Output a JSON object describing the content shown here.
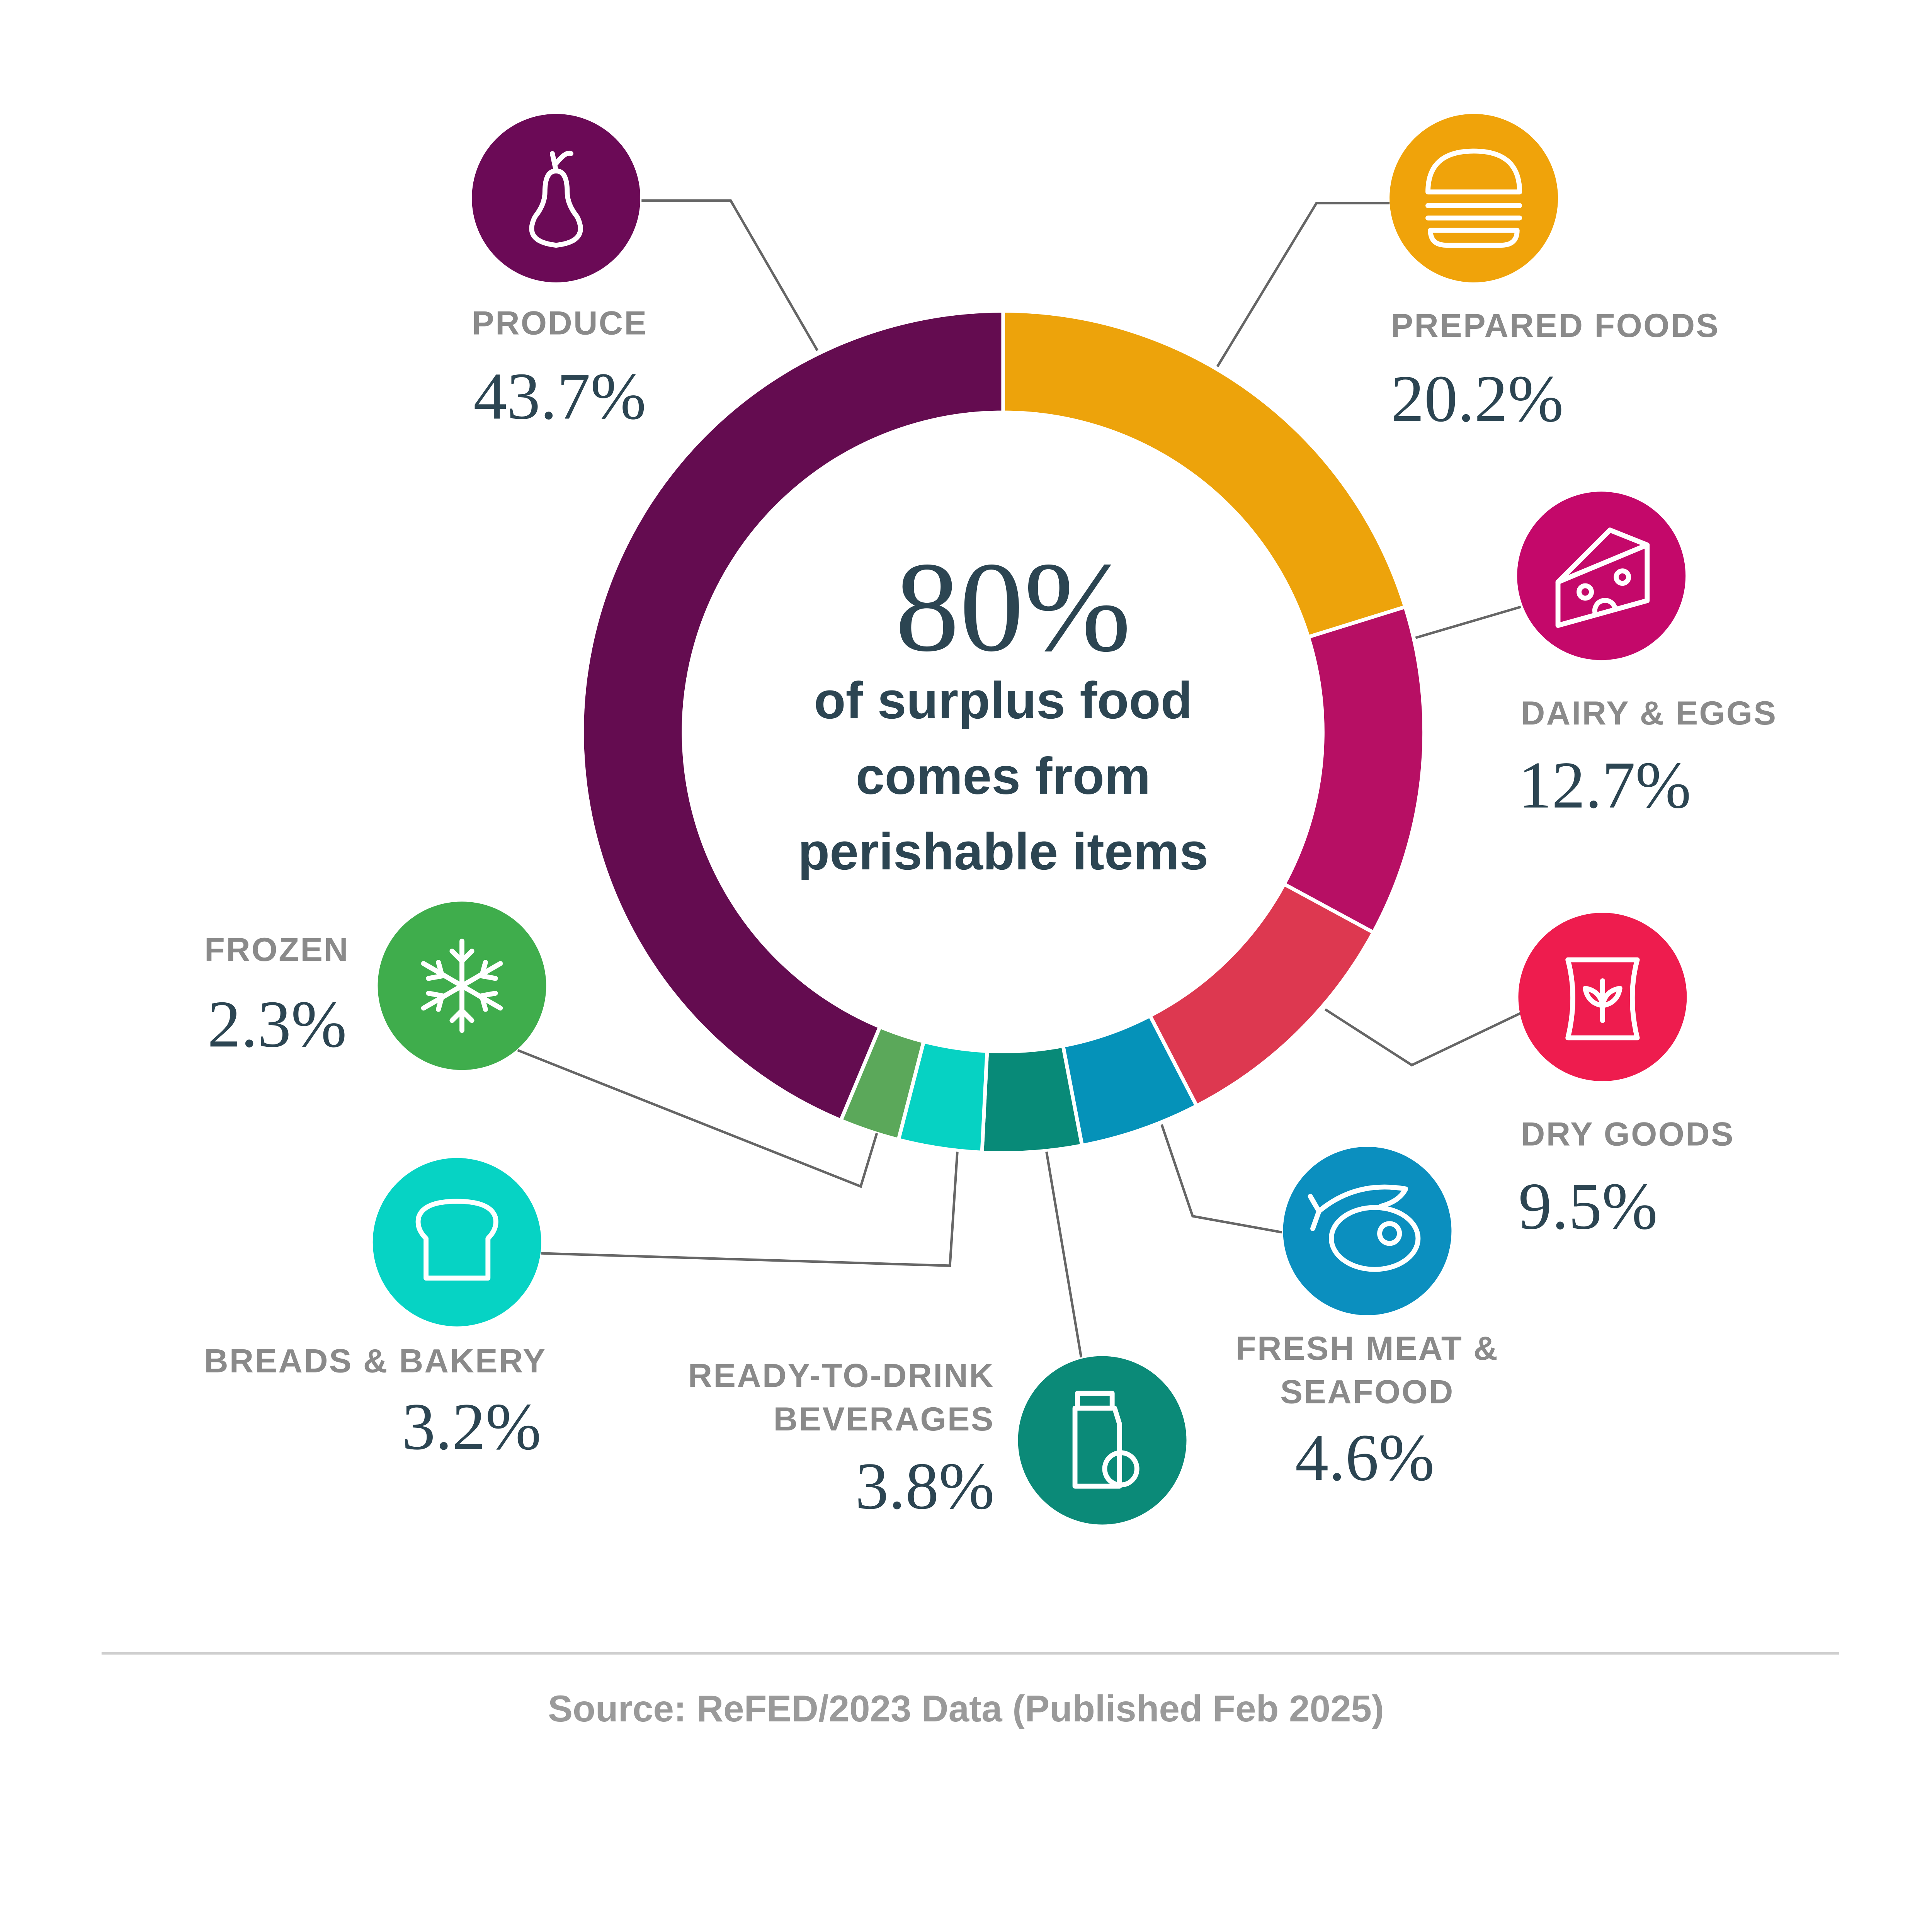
{
  "chart_data": {
    "type": "pie",
    "variant": "donut",
    "center_value": "80%",
    "center_text": [
      "of surplus food",
      "comes from",
      "perishable items"
    ],
    "slices": [
      {
        "label": "PREPARED FOODS",
        "label_lines": [
          "PREPARED FOODS"
        ],
        "value": 20.2,
        "display": "20.2%",
        "color": "#eda30b",
        "icon": "burger-icon"
      },
      {
        "label": "DAIRY & EGGS",
        "label_lines": [
          "DAIRY & EGGS"
        ],
        "value": 12.7,
        "display": "12.7%",
        "color": "#b70f64",
        "icon": "cheese-icon"
      },
      {
        "label": "DRY GOODS",
        "label_lines": [
          "DRY GOODS"
        ],
        "value": 9.5,
        "display": "9.5%",
        "color": "#dd3850",
        "icon": "grain-bag-icon"
      },
      {
        "label": "FRESH MEAT & SEAFOOD",
        "label_lines": [
          "FRESH MEAT &",
          "SEAFOOD"
        ],
        "value": 4.6,
        "display": "4.6%",
        "color": "#0592b9",
        "icon": "fish-steak-icon"
      },
      {
        "label": "READY-TO-DRINK BEVERAGES",
        "label_lines": [
          "READY-TO-DRINK",
          "BEVERAGES"
        ],
        "value": 3.8,
        "display": "3.8%",
        "color": "#088a78",
        "icon": "drink-carton-icon"
      },
      {
        "label": "BREADS & BAKERY",
        "label_lines": [
          "BREADS & BAKERY"
        ],
        "value": 3.2,
        "display": "3.2%",
        "color": "#06d2c3",
        "icon": "bread-icon"
      },
      {
        "label": "FROZEN",
        "label_lines": [
          "FROZEN"
        ],
        "value": 2.3,
        "display": "2.3%",
        "color": "#5ba85a",
        "icon": "snowflake-icon"
      },
      {
        "label": "PRODUCE",
        "label_lines": [
          "PRODUCE"
        ],
        "value": 43.7,
        "display": "43.7%",
        "color": "#640c50",
        "icon": "pear-icon"
      }
    ],
    "icon_colors": [
      "#f0a30a",
      "#c4086a",
      "#ee1c4e",
      "#0b8fbf",
      "#0b8a78",
      "#06d3c4",
      "#3fad4c",
      "#6b0a56"
    ]
  },
  "source": "Source: ReFED/2023 Data (Published Feb 2025)"
}
